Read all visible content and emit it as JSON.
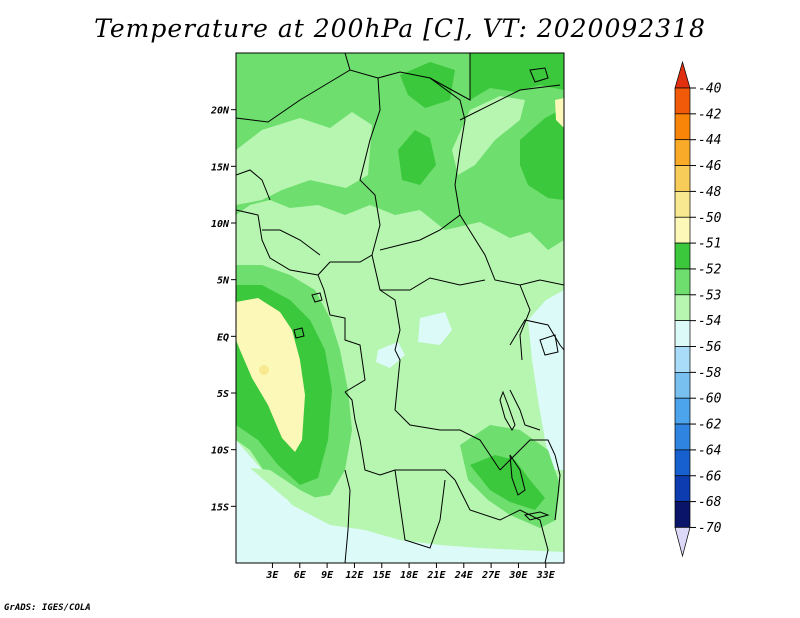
{
  "title": "Temperature at 200hPa [C], VT: 2020092318",
  "credit": "GrADS: IGES/COLA",
  "map": {
    "lon_range": [
      -1,
      35
    ],
    "lat_range": [
      -20,
      25
    ],
    "lon_ticks": [
      "3E",
      "6E",
      "9E",
      "12E",
      "15E",
      "18E",
      "21E",
      "24E",
      "27E",
      "30E",
      "33E"
    ],
    "lon_values": [
      3,
      6,
      9,
      12,
      15,
      18,
      21,
      24,
      27,
      30,
      33
    ],
    "lat_ticks": [
      "20N",
      "15N",
      "10N",
      "5N",
      "EQ",
      "5S",
      "10S",
      "15S"
    ],
    "lat_values": [
      20,
      15,
      10,
      5,
      0,
      -5,
      -10,
      -15
    ]
  },
  "colorbar": {
    "levels": [
      "-40",
      "-42",
      "-44",
      "-46",
      "-48",
      "-50",
      "-51",
      "-52",
      "-53",
      "-54",
      "-56",
      "-58",
      "-60",
      "-62",
      "-64",
      "-66",
      "-68",
      "-70"
    ],
    "colors": [
      "#e03010",
      "#f05a08",
      "#f88408",
      "#f8aa28",
      "#f8cc58",
      "#f8e890",
      "#fcf8b8",
      "#3cc83c",
      "#6ede6e",
      "#b6f6b0",
      "#dcfaf8",
      "#a8dcf8",
      "#78c0f0",
      "#4ca4ec",
      "#2e84e0",
      "#1660d0",
      "#0c3cb0",
      "#0a1468",
      "#dcd8f8"
    ]
  }
}
